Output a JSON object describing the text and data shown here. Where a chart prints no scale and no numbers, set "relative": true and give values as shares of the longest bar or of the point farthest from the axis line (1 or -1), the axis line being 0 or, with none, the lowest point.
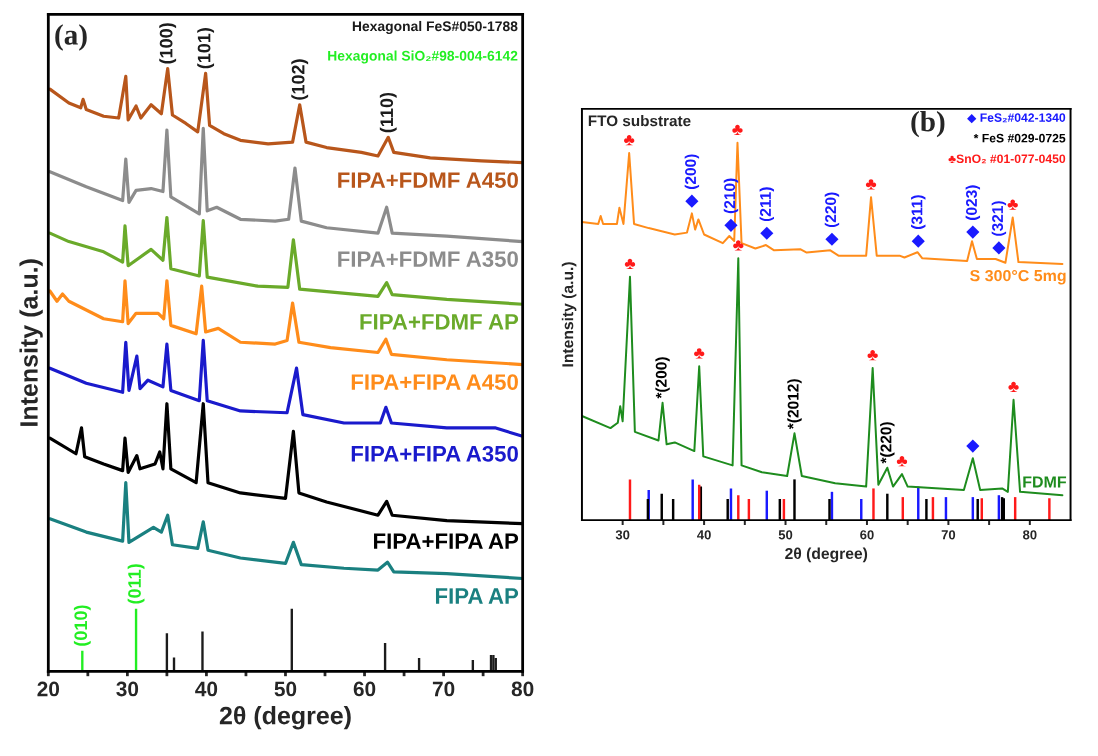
{
  "chart_data": [
    {
      "type": "line",
      "xlabel": "2θ (degree)",
      "ylabel": "Intensity (a.u.)",
      "relative": true,
      "xlim": [
        20,
        80
      ],
      "xticks": [
        20,
        {
          "value": 25,
          "label": null
        },
        30,
        {
          "value": 35,
          "label": null
        },
        40,
        {
          "value": 45,
          "label": null
        },
        50,
        {
          "value": 55,
          "label": null
        },
        60,
        {
          "value": 65,
          "label": null
        },
        70,
        {
          "value": 75,
          "label": null
        },
        80
      ],
      "series": [
        {
          "name": "FIPA+FDMF A450",
          "color": "#b8561b",
          "x": [
            20.2,
            22.6,
            24.1,
            24.4,
            24.8,
            27.0,
            28.9,
            29.8,
            30.1,
            31.1,
            31.7,
            33.0,
            34.3,
            35.1,
            35.7,
            37.4,
            38.9,
            39.9,
            40.4,
            42.2,
            44.3,
            47.8,
            50.9,
            51.8,
            52.6,
            55.2,
            59.6,
            61.7,
            63.0,
            63.7,
            68.3,
            74.8,
            80.0
          ],
          "values": [
            0.966,
            0.943,
            0.935,
            0.949,
            0.932,
            0.921,
            0.918,
            0.987,
            0.915,
            0.938,
            0.918,
            0.94,
            0.925,
            1.0,
            0.923,
            0.909,
            0.895,
            0.992,
            0.906,
            0.892,
            0.881,
            0.875,
            0.878,
            0.94,
            0.878,
            0.869,
            0.861,
            0.855,
            0.886,
            0.861,
            0.852,
            0.847,
            0.844
          ]
        },
        {
          "name": "FIPA+FDMF A350",
          "color": "#8c8c8c",
          "x": [
            20.2,
            24.8,
            29.4,
            29.8,
            30.2,
            31.1,
            33.0,
            34.5,
            35.0,
            35.5,
            39.1,
            39.6,
            40.1,
            41.3,
            44.3,
            48.7,
            50.4,
            51.2,
            52.0,
            55.2,
            61.7,
            62.8,
            63.5,
            70.4,
            80.0
          ],
          "values": [
            0.829,
            0.804,
            0.781,
            0.85,
            0.778,
            0.798,
            0.801,
            0.796,
            0.898,
            0.787,
            0.759,
            0.901,
            0.764,
            0.77,
            0.75,
            0.747,
            0.75,
            0.835,
            0.747,
            0.736,
            0.727,
            0.77,
            0.727,
            0.722,
            0.713
          ]
        },
        {
          "name": "FIPA+FDMF AP",
          "color": "#6aaa2a",
          "x": [
            20.2,
            22.6,
            27.0,
            29.4,
            29.7,
            30.1,
            33.0,
            34.5,
            35.0,
            35.5,
            39.1,
            39.6,
            40.1,
            46.5,
            50.3,
            51.0,
            51.8,
            61.7,
            62.8,
            63.5,
            70.4,
            80.0
          ],
          "values": [
            0.727,
            0.713,
            0.696,
            0.679,
            0.739,
            0.673,
            0.7,
            0.682,
            0.753,
            0.668,
            0.656,
            0.748,
            0.654,
            0.639,
            0.637,
            0.716,
            0.634,
            0.622,
            0.645,
            0.625,
            0.617,
            0.609
          ]
        },
        {
          "name": "FIPA+FIPA A450",
          "color": "#ff8c1a",
          "x": [
            20.2,
            21.1,
            21.8,
            22.6,
            27.0,
            29.4,
            29.7,
            30.1,
            31.1,
            33.9,
            34.6,
            35.0,
            35.5,
            38.7,
            39.4,
            39.9,
            41.5,
            44.3,
            48.7,
            50.2,
            50.9,
            51.7,
            55.7,
            61.7,
            62.7,
            63.4,
            70.4,
            80.0
          ],
          "values": [
            0.631,
            0.614,
            0.626,
            0.614,
            0.585,
            0.58,
            0.648,
            0.577,
            0.594,
            0.594,
            0.585,
            0.648,
            0.574,
            0.56,
            0.639,
            0.563,
            0.569,
            0.546,
            0.543,
            0.549,
            0.611,
            0.546,
            0.537,
            0.529,
            0.551,
            0.526,
            0.517,
            0.509
          ]
        },
        {
          "name": "FIPA+FIPA A350",
          "color": "#1a1acc",
          "x": [
            20.2,
            24.8,
            29.4,
            29.8,
            30.2,
            31.2,
            31.6,
            32.6,
            34.5,
            35.0,
            35.5,
            39.1,
            39.6,
            40.1,
            44.3,
            50.2,
            51.4,
            52.2,
            57.4,
            62.0,
            62.7,
            63.4,
            70.4,
            76.5,
            80.0
          ],
          "values": [
            0.503,
            0.478,
            0.463,
            0.546,
            0.466,
            0.523,
            0.469,
            0.483,
            0.472,
            0.543,
            0.466,
            0.449,
            0.549,
            0.449,
            0.432,
            0.429,
            0.503,
            0.426,
            0.412,
            0.412,
            0.438,
            0.412,
            0.404,
            0.404,
            0.39
          ]
        },
        {
          "name": "FIPA+FIPA AP",
          "color": "#000000",
          "x": [
            20.2,
            23.5,
            24.2,
            24.6,
            27.0,
            29.4,
            29.7,
            30.1,
            31.2,
            31.6,
            33.5,
            34.1,
            34.5,
            35.0,
            35.5,
            38.7,
            39.6,
            40.2,
            44.3,
            50.0,
            51.0,
            51.7,
            55.2,
            61.7,
            62.8,
            63.5,
            70.4,
            80.0
          ],
          "values": [
            0.387,
            0.361,
            0.404,
            0.356,
            0.344,
            0.333,
            0.387,
            0.33,
            0.358,
            0.336,
            0.344,
            0.364,
            0.336,
            0.444,
            0.336,
            0.313,
            0.444,
            0.313,
            0.296,
            0.287,
            0.398,
            0.296,
            0.281,
            0.259,
            0.282,
            0.259,
            0.25,
            0.245
          ]
        },
        {
          "name": "FIPA AP",
          "color": "#1a8080",
          "x": [
            20.2,
            24.8,
            29.4,
            29.8,
            30.2,
            33.3,
            34.3,
            35.1,
            35.7,
            38.9,
            39.6,
            40.2,
            44.3,
            50.0,
            51.0,
            52.0,
            57.4,
            61.7,
            62.9,
            63.7,
            70.4,
            80.0
          ],
          "values": [
            0.253,
            0.231,
            0.216,
            0.313,
            0.214,
            0.239,
            0.231,
            0.259,
            0.21,
            0.204,
            0.248,
            0.201,
            0.188,
            0.179,
            0.214,
            0.177,
            0.171,
            0.168,
            0.181,
            0.165,
            0.162,
            0.154
          ]
        },
        {
          "name": "Hexagonal FeS#050-1788",
          "color": "#1c1c1c",
          "type": "bar",
          "x": [
            35.0,
            35.9,
            39.5,
            50.8,
            62.6,
            66.9,
            73.7,
            76.0,
            76.3,
            76.6
          ],
          "values": [
            0.063,
            0.023,
            0.066,
            0.104,
            0.047,
            0.022,
            0.019,
            0.027,
            0.027,
            0.022
          ]
        },
        {
          "name": "Hexagonal SiO₂#98-004-6142",
          "color": "#22ee22",
          "type": "bar",
          "x": [
            24.3,
            31.1
          ],
          "values": [
            0.034,
            0.104
          ]
        }
      ],
      "annotations": [
        "(a)",
        {
          "text": "(100)",
          "x": 35.1,
          "y": 1.0
        },
        {
          "text": "(101)",
          "x": 39.9,
          "y": 0.992
        },
        {
          "text": "(102)",
          "x": 51.8,
          "y": 0.94
        },
        {
          "text": "(110)",
          "x": 63.0,
          "y": 0.886
        },
        {
          "text": "(010)",
          "x": 24.3,
          "y": 0.034
        },
        {
          "text": "(011)",
          "x": 31.1,
          "y": 0.104
        }
      ]
    },
    {
      "type": "line",
      "xlabel": "2θ (degree)",
      "ylabel": "Intensity (a.u.)",
      "relative": true,
      "xlim": [
        25,
        85
      ],
      "xticks": [
        30,
        {
          "value": 35,
          "label": null
        },
        40,
        {
          "value": 45,
          "label": null
        },
        50,
        {
          "value": 55,
          "label": null
        },
        60,
        {
          "value": 65,
          "label": null
        },
        70,
        {
          "value": 75,
          "label": null
        },
        80
      ],
      "series": [
        {
          "name": "S 300°C 5mg",
          "color": "#ff8c1a",
          "x": [
            25.0,
            27.0,
            27.3,
            27.6,
            29.3,
            29.6,
            30.1,
            30.8,
            31.4,
            33.2,
            36.4,
            37.9,
            38.5,
            38.9,
            39.3,
            40.0,
            42.3,
            43.1,
            43.7,
            44.1,
            44.6,
            46.3,
            47.6,
            48.6,
            51.8,
            52.6,
            55.5,
            56.5,
            59.9,
            60.5,
            61.2,
            64.0,
            64.6,
            66.2,
            66.8,
            72.3,
            72.9,
            73.5,
            75.8,
            77.0,
            77.9,
            78.6,
            84.0
          ],
          "values": [
            0.79,
            0.785,
            0.806,
            0.785,
            0.785,
            0.828,
            0.785,
            0.973,
            0.785,
            0.774,
            0.757,
            0.762,
            0.813,
            0.77,
            0.797,
            0.757,
            0.734,
            0.753,
            0.74,
            1.0,
            0.734,
            0.72,
            0.729,
            0.715,
            0.718,
            0.709,
            0.715,
            0.701,
            0.701,
            0.856,
            0.701,
            0.701,
            0.696,
            0.71,
            0.694,
            0.687,
            0.739,
            0.692,
            0.692,
            0.682,
            0.802,
            0.684,
            0.679
          ]
        },
        {
          "name": "FDMF",
          "color": "#1e8c1e",
          "x": [
            25.0,
            28.5,
            29.4,
            29.7,
            30.0,
            30.9,
            31.5,
            34.4,
            34.9,
            35.4,
            36.4,
            38.8,
            39.4,
            39.9,
            43.5,
            44.2,
            44.6,
            47.1,
            50.2,
            51.1,
            52.0,
            56.1,
            59.9,
            60.7,
            61.4,
            62.5,
            63.2,
            64.3,
            65.0,
            71.9,
            73.0,
            73.9,
            76.6,
            77.3,
            78.0,
            78.8,
            84.0
          ],
          "values": [
            0.276,
            0.244,
            0.258,
            0.302,
            0.262,
            0.645,
            0.234,
            0.211,
            0.311,
            0.201,
            0.206,
            0.183,
            0.408,
            0.169,
            0.145,
            0.694,
            0.145,
            0.127,
            0.117,
            0.23,
            0.117,
            0.098,
            0.089,
            0.403,
            0.094,
            0.139,
            0.089,
            0.122,
            0.089,
            0.08,
            0.164,
            0.08,
            0.084,
            0.075,
            0.319,
            0.075,
            0.066
          ]
        },
        {
          "name": "◆ FeS₂#042-1340",
          "color": "#1a1aff",
          "type": "bar",
          "x": [
            33.2,
            38.6,
            43.3,
            47.7,
            55.7,
            59.3,
            66.3,
            69.7,
            73.0,
            76.2
          ],
          "values": [
            0.08,
            0.108,
            0.084,
            0.078,
            0.075,
            0.056,
            0.089,
            0.061,
            0.061,
            0.066
          ]
        },
        {
          "name": "* FeS #029-0725",
          "color": "#000000",
          "type": "bar",
          "x": [
            33.1,
            34.8,
            36.2,
            39.6,
            42.9,
            49.3,
            51.1,
            55.4,
            62.5,
            67.3,
            73.6,
            76.6,
            76.8
          ],
          "values": [
            0.056,
            0.07,
            0.056,
            0.089,
            0.056,
            0.056,
            0.108,
            0.056,
            0.07,
            0.056,
            0.056,
            0.061,
            0.058
          ]
        },
        {
          "name": "♣SnO₂ #01-077-0450",
          "color": "#ff1a1a",
          "type": "bar",
          "x": [
            30.9,
            39.4,
            44.2,
            45.5,
            49.8,
            60.8,
            64.4,
            68.1,
            74.1,
            78.2,
            82.4
          ],
          "values": [
            0.108,
            0.094,
            0.066,
            0.056,
            0.056,
            0.084,
            0.061,
            0.061,
            0.058,
            0.061,
            0.058
          ]
        }
      ],
      "annotations": [
        "FTO substrate",
        "(b)",
        {
          "text": "♣",
          "x": 30.8,
          "y": 0.973
        },
        {
          "text": "♣",
          "x": 44.1,
          "y": 1.0
        },
        {
          "text": "♣",
          "x": 60.5,
          "y": 0.856
        },
        {
          "text": "♣",
          "x": 77.9,
          "y": 0.802
        },
        {
          "text": "♣",
          "x": 30.9,
          "y": 0.645
        },
        {
          "text": "♣",
          "x": 44.2,
          "y": 0.694
        },
        {
          "text": "♣",
          "x": 39.4,
          "y": 0.408
        },
        {
          "text": "♣",
          "x": 60.7,
          "y": 0.403
        },
        {
          "text": "♣",
          "x": 64.3,
          "y": 0.122
        },
        {
          "text": "♣",
          "x": 78.0,
          "y": 0.319
        },
        {
          "text": "◆",
          "x": 38.5,
          "y": 0.813
        },
        {
          "text": "◆",
          "x": 43.3,
          "y": 0.749
        },
        {
          "text": "◆",
          "x": 47.7,
          "y": 0.728
        },
        {
          "text": "◆",
          "x": 55.7,
          "y": 0.712
        },
        {
          "text": "◆",
          "x": 66.3,
          "y": 0.707
        },
        {
          "text": "◆",
          "x": 73.0,
          "y": 0.731
        },
        {
          "text": "◆",
          "x": 76.2,
          "y": 0.689
        },
        {
          "text": "◆",
          "x": 73.0,
          "y": 0.164
        },
        {
          "text": "(200)",
          "x": 38.5,
          "y": 0.813
        },
        {
          "text": "(210)",
          "x": 43.3,
          "y": 0.749
        },
        {
          "text": "(211)",
          "x": 47.7,
          "y": 0.728
        },
        {
          "text": "(220)",
          "x": 55.7,
          "y": 0.712
        },
        {
          "text": "(311)",
          "x": 66.3,
          "y": 0.707
        },
        {
          "text": "(023)",
          "x": 73.0,
          "y": 0.731
        },
        {
          "text": "(321)",
          "x": 76.2,
          "y": 0.689
        },
        {
          "text": "*(200)",
          "x": 34.9,
          "y": 0.311
        },
        {
          "text": "*(2012)",
          "x": 51.1,
          "y": 0.23
        },
        {
          "text": "*(220)",
          "x": 62.5,
          "y": 0.139
        }
      ]
    }
  ]
}
